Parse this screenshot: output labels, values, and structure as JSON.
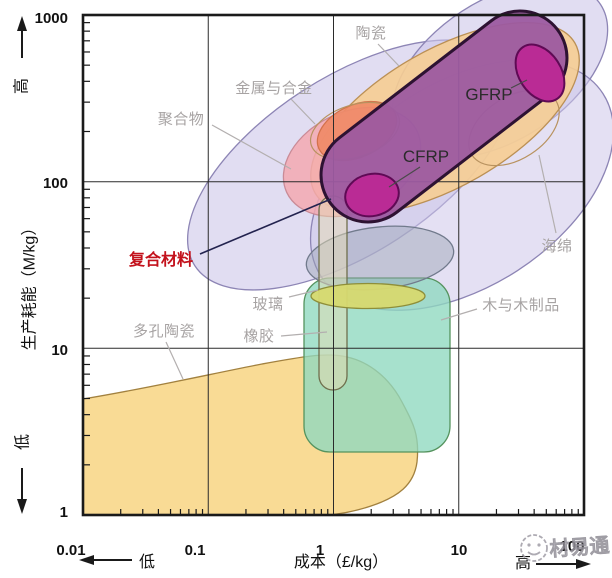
{
  "chart_data": {
    "type": "area",
    "title": "",
    "xlabel": "成本（£/kg）",
    "ylabel": "生产耗能（M/kg）",
    "x_scale": "log",
    "y_scale": "log",
    "xlim": [
      0.01,
      100
    ],
    "ylim": [
      1,
      1000
    ],
    "x_ticks": [
      "0.01",
      "0.1",
      "1",
      "10",
      "100"
    ],
    "y_ticks": [
      "1000",
      "100",
      "10",
      "1"
    ],
    "axis_low_label": "低",
    "axis_high_label": "高",
    "grid": "log-decade-lines",
    "legend": "none",
    "regions": [
      {
        "label": "陶瓷",
        "name": "ceramics",
        "cost_range_gbp_per_kg": [
          0.66,
          91
        ],
        "energy_range_M_per_kg": [
          65,
          900
        ],
        "color": "#f6cd92"
      },
      {
        "label": "金属与合金",
        "name": "metals-and-alloys",
        "cost_range_gbp_per_kg": [
          0.08,
          23
        ],
        "energy_range_M_per_kg": [
          22,
          700
        ],
        "color": "#cdc6e9"
      },
      {
        "label": "聚合物",
        "name": "polymers",
        "cost_range_gbp_per_kg": [
          0.4,
          4.9
        ],
        "energy_range_M_per_kg": [
          61,
          280
        ],
        "color": "#f3a9b2"
      },
      {
        "label": "复合材料",
        "name": "composites",
        "cost_range_gbp_per_kg": [
          0.76,
          77
        ],
        "energy_range_M_per_kg": [
          56,
          850
        ],
        "color": "#9c5aa0",
        "label_color": "#c3121c"
      },
      {
        "label": "CFRP",
        "name": "cfrp",
        "cost_range_gbp_per_kg": [
          1.2,
          3.3
        ],
        "energy_range_M_per_kg": [
          62,
          111
        ],
        "color": "#ba2b95"
      },
      {
        "label": "GFRP",
        "name": "gfrp",
        "cost_range_gbp_per_kg": [
          30,
          64
        ],
        "energy_range_M_per_kg": [
          296,
          697
        ],
        "color": "#ba2b95"
      },
      {
        "label": "海绵",
        "name": "sponge-foam",
        "cost_range_gbp_per_kg": [
          0.54,
          100
        ],
        "energy_range_M_per_kg": [
          17,
          660
        ],
        "color": "#cdc6e9"
      },
      {
        "label": "玻璃",
        "name": "glass",
        "cost_range_gbp_per_kg": [
          0.67,
          5.4
        ],
        "energy_range_M_per_kg": [
          17.5,
          24.5
        ],
        "color": "#d7d96f"
      },
      {
        "label": "橡胶",
        "name": "rubber",
        "cost_range_gbp_per_kg": [
          0.77,
          1.26
        ],
        "energy_range_M_per_kg": [
          5.7,
          83
        ],
        "color": "#e6dcb4"
      },
      {
        "label": "木与木制品",
        "name": "wood-and-wood-products",
        "cost_range_gbp_per_kg": [
          0.58,
          8.5
        ],
        "energy_range_M_per_kg": [
          2.3,
          26
        ],
        "color": "#8ed8bf"
      },
      {
        "label": "多孔陶瓷",
        "name": "porous-ceramics",
        "cost_range_gbp_per_kg": [
          0.01,
          4.9
        ],
        "energy_range_M_per_kg": [
          1,
          9
        ],
        "color": "#f8d88c"
      }
    ]
  },
  "watermark": {
    "text": "材易通"
  }
}
